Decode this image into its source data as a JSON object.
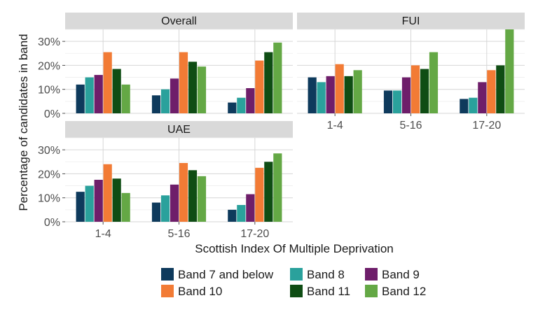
{
  "chart_data": {
    "type": "bar",
    "xlabel": "Scottish Index Of Multiple Deprivation",
    "ylabel": "Percentage of candidates in band",
    "ylim": [
      0,
      35
    ],
    "yticks": [
      "0%",
      "10%",
      "20%",
      "30%"
    ],
    "categories": [
      "1-4",
      "5-16",
      "17-20"
    ],
    "legend_position": "bottom",
    "series": [
      {
        "name": "Band 7 and below",
        "color": "#0e3a5c"
      },
      {
        "name": "Band 8",
        "color": "#2aa19c"
      },
      {
        "name": "Band 9",
        "color": "#6e1e6a"
      },
      {
        "name": "Band 10",
        "color": "#f27b35"
      },
      {
        "name": "Band 11",
        "color": "#0f4d14"
      },
      {
        "name": "Band 12",
        "color": "#64a845"
      }
    ],
    "panels": [
      {
        "title": "Overall",
        "values": [
          [
            12,
            15,
            16,
            25.5,
            18.5,
            12
          ],
          [
            7.5,
            10,
            14.5,
            25.5,
            21.5,
            19.5
          ],
          [
            4.5,
            6.5,
            10.5,
            22,
            25.5,
            29.5
          ]
        ]
      },
      {
        "title": "FUI",
        "values": [
          [
            15,
            13,
            15.5,
            20.5,
            15.5,
            18
          ],
          [
            9.5,
            9.5,
            15,
            20,
            18.5,
            25.5
          ],
          [
            6,
            6.5,
            13,
            18,
            20,
            35
          ]
        ]
      },
      {
        "title": "UAE",
        "values": [
          [
            12.5,
            15,
            17.5,
            24,
            18,
            12
          ],
          [
            8,
            11,
            15.5,
            24.5,
            21.5,
            19
          ],
          [
            5,
            7,
            11.5,
            22.5,
            25,
            28.5
          ]
        ]
      }
    ]
  }
}
